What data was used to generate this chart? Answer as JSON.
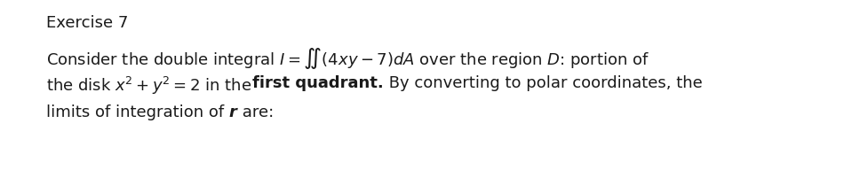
{
  "background_color": "#ffffff",
  "title_text": "Exercise 7",
  "fontsize": 13,
  "text_color": "#1a1a1a",
  "line1": "Consider the double integral $I = \\iint(4xy - 7)dA$ over the region $D$: portion of",
  "line2_pre": "the disk $x^2 + y^2 = 2$ in the ",
  "line2_bold": "first quadrant.",
  "line2_post": " By converting to polar coordinates, the",
  "line3_pre": "limits of integration of ",
  "line3_bold_italic": "r",
  "line3_post": " are:"
}
